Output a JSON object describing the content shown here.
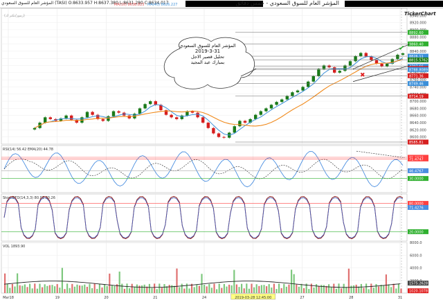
{
  "window": {
    "title_ar": "المؤشر العام للسوق السعودي - خمس دقائق",
    "symbol_info": "المؤشر العام للسوق السعودي (TASI) O:8633.957 H:8637.380 L:8631.280 C:8634.017",
    "ma_labels": [
      "MA(10) 8638.823",
      "MA(40) 8626.227"
    ],
    "brand": "TickerChart",
    "watermark": "(زموز/تكتر ك)"
  },
  "annotation": {
    "line1": "المؤشر العام للسوق السعودي",
    "line2": "2019-3-31",
    "line3": "تحليل قصير الاجل",
    "line4": "بمبارك عبد المجيد"
  },
  "colors": {
    "up": "#1a7a1a",
    "down": "#d61f1f",
    "ma_fast": "#3b8fd9",
    "ma_slow": "#f08a1c",
    "rsi_line": "#4a8ee0",
    "overbought_fill": "#f4a0a0",
    "oversold_fill": "#8fd48f",
    "stoch_k": "#8b1a1a",
    "stoch_d": "#4060c0",
    "ref_red": "#ff4040",
    "ref_green": "#30b030"
  },
  "chart_data": [
    {
      "type": "candlestick",
      "panel": "price",
      "ylim": [
        8580,
        8960
      ],
      "y_ticks": [
        "8960.000",
        "8940.000",
        "8920.000",
        "8900.000",
        "8880.000",
        "8860.000",
        "8840.000",
        "8820.000",
        "8800.000",
        "8780.000",
        "8760.000",
        "8740.000",
        "8720.000",
        "8700.000",
        "8680.000",
        "8660.000",
        "8640.000",
        "8620.000",
        "8600.000"
      ],
      "levels": [
        {
          "label": "8892.60",
          "value": 8892.6,
          "color": "#30b030"
        },
        {
          "label": "8860.40",
          "value": 8860.4,
          "color": "#30b030"
        },
        {
          "label": "8826.11",
          "value": 8826.11,
          "color": "#3b8fd9"
        },
        {
          "label": "8815.5762",
          "value": 8815.58,
          "color": "#1a7a1a"
        },
        {
          "label": "8797.66",
          "value": 8797.66,
          "color": "#3b8fd9"
        },
        {
          "label": "8791.70",
          "value": 8791.7,
          "color": "#d61f1f"
        },
        {
          "label": "8788.8089",
          "value": 8788.8,
          "color": "#3b8fd9"
        },
        {
          "label": "8771.36",
          "value": 8771.36,
          "color": "#d61f1f"
        },
        {
          "label": "8749.46",
          "value": 8749.46,
          "color": "#3b8fd9"
        },
        {
          "label": "8714.19",
          "value": 8714.19,
          "color": "#d61f1f"
        },
        {
          "label": "8585.81",
          "value": 8585.81,
          "color": "#d61f1f"
        }
      ],
      "close": [
        8625,
        8640,
        8655,
        8650,
        8645,
        8652,
        8660,
        8648,
        8640,
        8655,
        8670,
        8662,
        8650,
        8645,
        8658,
        8672,
        8668,
        8660,
        8652,
        8665,
        8680,
        8692,
        8700,
        8690,
        8675,
        8662,
        8655,
        8650,
        8660,
        8672,
        8668,
        8655,
        8640,
        8625,
        8610,
        8600,
        8598,
        8612,
        8630,
        8645,
        8640,
        8650,
        8662,
        8672,
        8680,
        8690,
        8698,
        8705,
        8715,
        8725,
        8730,
        8740,
        8755,
        8770,
        8790,
        8800,
        8795,
        8780,
        8785,
        8800,
        8812,
        8826,
        8835,
        8825,
        8815,
        8805,
        8798,
        8805,
        8818,
        8830,
        8834
      ]
    },
    {
      "type": "line",
      "panel": "RSI",
      "name": "RSI(14) 56.42",
      "secondary": "EMA(20) 44.78",
      "ylim": [
        0,
        100
      ],
      "levels": [
        {
          "label": "75.0000",
          "value": 75
        },
        {
          "label": "71.4747",
          "value": 71.47
        },
        {
          "label": "46.4767",
          "value": 46.48
        },
        {
          "label": "30.0000",
          "value": 30
        }
      ]
    },
    {
      "type": "line",
      "panel": "Stochastic",
      "name": "StochSTO(14,3,3) 80.03 80.26",
      "ylim": [
        0,
        100
      ],
      "levels": [
        {
          "label": "80.0000",
          "value": 80
        },
        {
          "label": "71.4276",
          "value": 71.43
        },
        {
          "label": "20.0000",
          "value": 20
        }
      ]
    },
    {
      "type": "bar",
      "panel": "Volume",
      "name": "VOL 1893.90",
      "ylim": [
        0,
        8000
      ],
      "y_ticks": [
        "8000.0",
        "6000.0",
        "4000.0",
        "2000.0"
      ],
      "levels": [
        {
          "label": "1575.2628",
          "value": 1575.26
        },
        {
          "label": "1020.1078",
          "value": 1020.11
        }
      ]
    }
  ],
  "x_axis": {
    "labels": [
      "Mar18",
      "19",
      "20",
      "21",
      "24",
      "2019-03-28 12:45:00",
      "27",
      "28",
      "31"
    ],
    "cursor_label": "2019-03-28 12:45:00"
  }
}
